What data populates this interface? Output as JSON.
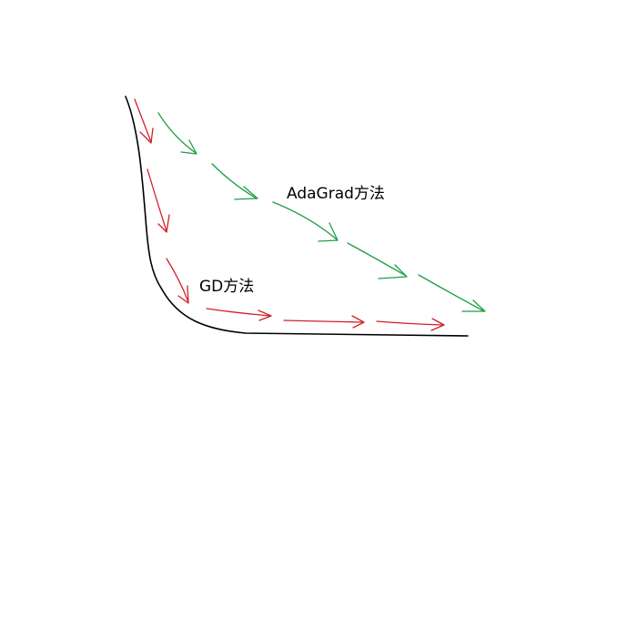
{
  "labels": {
    "adagrad": "AdaGrad方法",
    "gd": "GD方法"
  },
  "colors": {
    "curve": "#000000",
    "gd_arrows": "#d0202a",
    "adagrad_arrows": "#1e9e45"
  }
}
